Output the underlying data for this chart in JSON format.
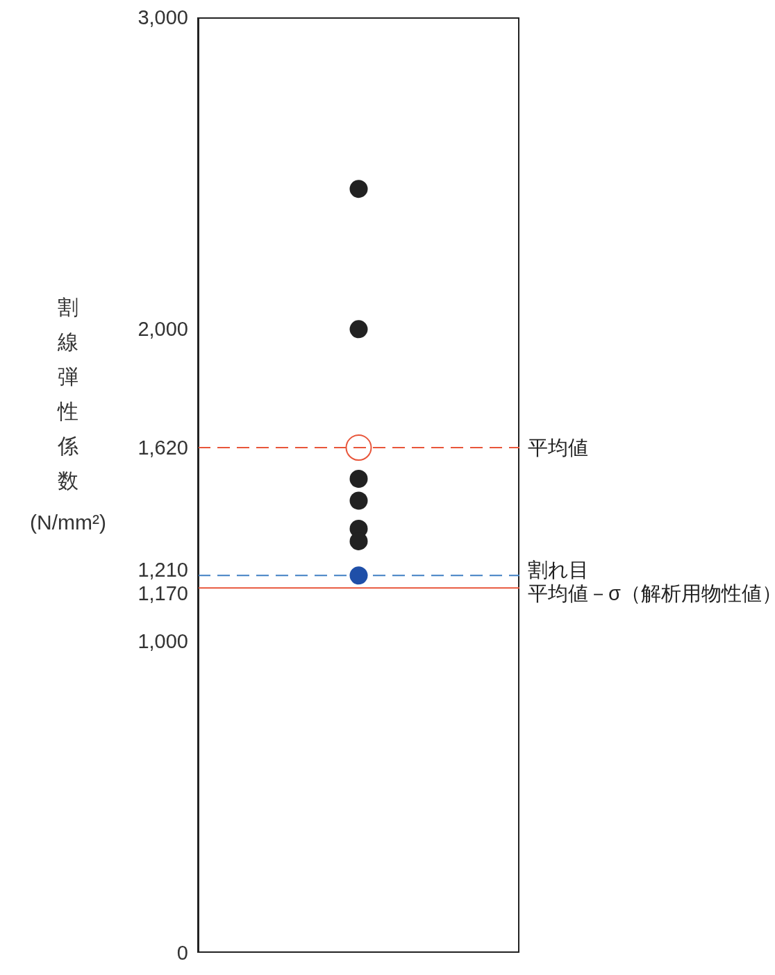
{
  "chart_data": {
    "type": "scatter",
    "ylabel": "割線弾性係数(N/mm²)",
    "categories": [
      null
    ],
    "ylim": [
      0,
      3000
    ],
    "yticks": [
      0,
      {
        "value": 1000,
        "label": "1,000"
      },
      {
        "value": 1170,
        "label": "1,170"
      },
      {
        "value": 1210,
        "label": "1,210"
      },
      {
        "value": 1620,
        "label": "1,620"
      },
      {
        "value": 2000,
        "label": "2,000"
      },
      {
        "value": 3000,
        "label": "3,000"
      }
    ],
    "tick_labels": "y",
    "grid": false,
    "legend": false,
    "series": [
      {
        "color": "#222222",
        "marker": "circle",
        "values": [
          2450
        ]
      },
      {
        "color": "#222222",
        "marker": "circle",
        "values": [
          2000
        ]
      },
      {
        "color": "#222222",
        "marker": "circle",
        "values": [
          1520
        ]
      },
      {
        "color": "#222222",
        "marker": "circle",
        "values": [
          1450
        ]
      },
      {
        "color": "#222222",
        "marker": "circle",
        "values": [
          1360
        ]
      },
      {
        "color": "#222222",
        "marker": "circle",
        "values": [
          1320
        ]
      },
      {
        "color": "#1f4fa8",
        "marker": "circle",
        "values": [
          1210
        ]
      },
      {
        "color": "#e8553a",
        "values": [
          1620
        ]
      }
    ],
    "ref_lines": [
      {
        "axis": "y",
        "value": 1620,
        "label": "平均値",
        "color": "#e8553a",
        "line_style": "dashed"
      },
      {
        "axis": "y",
        "value": 1210,
        "label": "割れ目",
        "color": "#3f7fc4",
        "line_style": "dashed"
      },
      {
        "axis": "y",
        "value": 1170,
        "label": "平均値－σ（解析用物性値）",
        "color": "#e8553a",
        "line_style": "solid"
      }
    ]
  }
}
